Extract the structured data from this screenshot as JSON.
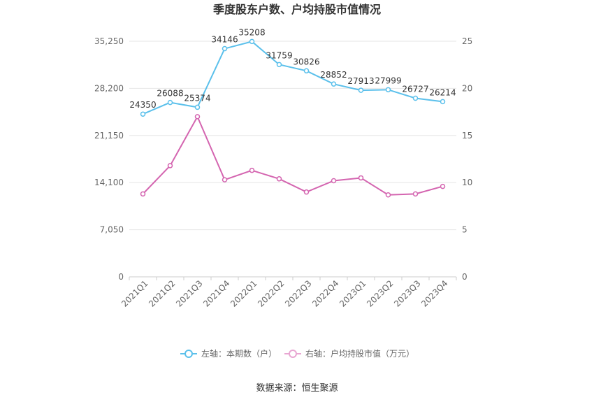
{
  "chart_data": {
    "type": "line",
    "title": "季度股东户数、户均持股市值情况",
    "categories": [
      "2021Q1",
      "2021Q2",
      "2021Q3",
      "2021Q4",
      "2022Q1",
      "2022Q2",
      "2022Q3",
      "2022Q4",
      "2023Q1",
      "2023Q2",
      "2023Q3",
      "2023Q4"
    ],
    "left_axis": {
      "min": 0,
      "max": 35250,
      "ticks": [
        0,
        7050,
        14100,
        21150,
        28200,
        35250
      ],
      "tick_labels": [
        "0",
        "7,050",
        "14,100",
        "21,150",
        "28,200",
        "35,250"
      ]
    },
    "right_axis": {
      "min": 0,
      "max": 25,
      "ticks": [
        0,
        5,
        10,
        15,
        20,
        25
      ],
      "tick_labels": [
        "0",
        "5",
        "10",
        "15",
        "20",
        "25"
      ]
    },
    "series": [
      {
        "name": "左轴：本期数（户）",
        "axis": "left",
        "color": "#5bc0eb",
        "values": [
          24350,
          26088,
          25374,
          34146,
          35208,
          31759,
          30826,
          28852,
          27913,
          27999,
          26727,
          26214
        ],
        "labels": [
          "24350",
          "26088",
          "25374",
          "34146",
          "35208",
          "31759",
          "30826",
          "28852",
          "27913",
          "27999",
          "26727",
          "26214"
        ]
      },
      {
        "name": "右轴：户均持股市值（万元）",
        "axis": "right",
        "color": "#d465b0",
        "values": [
          8.8,
          11.8,
          17.0,
          10.3,
          11.3,
          10.4,
          9.0,
          10.2,
          10.5,
          8.7,
          8.8,
          9.6
        ]
      }
    ],
    "grid": true,
    "legend_position": "bottom"
  },
  "source": "数据来源：恒生聚源"
}
